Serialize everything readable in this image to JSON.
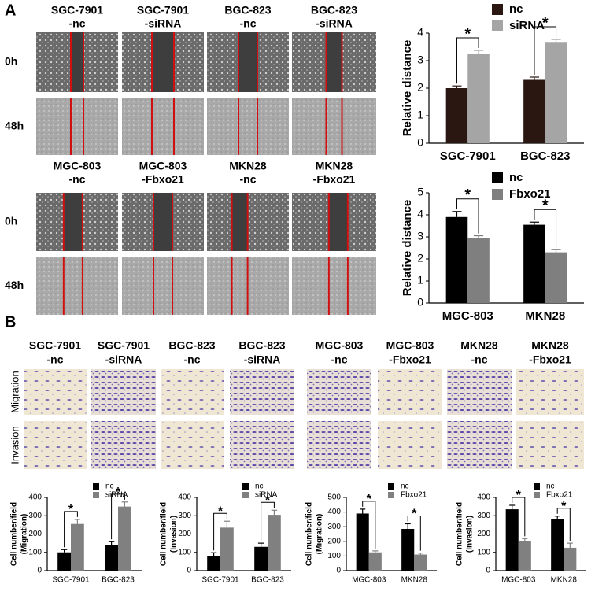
{
  "panel_a": {
    "label": "A",
    "header_rows": [
      [
        [
          "SGC-7901",
          "-nc"
        ],
        [
          "SGC-7901",
          "-siRNA"
        ],
        [
          "BGC-823",
          "-nc"
        ],
        [
          "BGC-823",
          "-siRNA"
        ]
      ],
      [
        [
          "MGC-803",
          "-nc"
        ],
        [
          "MGC-803",
          "-Fbxo21"
        ],
        [
          "MKN28",
          "-nc"
        ],
        [
          "MKN28",
          "-Fbxo21"
        ]
      ]
    ],
    "time_labels": [
      "0h",
      "48h"
    ]
  },
  "panel_b": {
    "label": "B",
    "headers": [
      [
        "SGC-7901",
        "-nc"
      ],
      [
        "SGC-7901",
        "-siRNA"
      ],
      [
        "BGC-823",
        "-nc"
      ],
      [
        "BGC-823",
        "-siRNA"
      ],
      [
        "MGC-803",
        "-nc"
      ],
      [
        "MGC-803",
        "-Fbxo21"
      ],
      [
        "MKN28",
        "-nc"
      ],
      [
        "MKN28",
        "-Fbxo21"
      ]
    ],
    "row_labels": [
      "Migration",
      "Invasion"
    ]
  },
  "chart_data": [
    {
      "type": "bar",
      "ylabel": [
        "Relative distance"
      ],
      "categories": [
        "SGC-7901",
        "BGC-823"
      ],
      "series": [
        {
          "name": "nc",
          "color": "#2a1712",
          "values": [
            2.0,
            2.3
          ],
          "errors": [
            0.08,
            0.1
          ]
        },
        {
          "name": "siRNA",
          "color": "#a5a5a5",
          "values": [
            3.25,
            3.65
          ],
          "errors": [
            0.12,
            0.12
          ]
        }
      ],
      "ylim": [
        0,
        4
      ],
      "yticks": [
        0,
        1,
        2,
        3,
        4
      ],
      "annotations": [
        "*",
        "*"
      ]
    },
    {
      "type": "bar",
      "ylabel": [
        "Relative distance"
      ],
      "categories": [
        "MGC-803",
        "MKN28"
      ],
      "series": [
        {
          "name": "nc",
          "color": "#000000",
          "values": [
            3.9,
            3.55
          ],
          "errors": [
            0.25,
            0.12
          ]
        },
        {
          "name": "Fbxo21",
          "color": "#7f7f7f",
          "values": [
            2.95,
            2.3
          ],
          "errors": [
            0.1,
            0.12
          ]
        }
      ],
      "ylim": [
        0,
        5
      ],
      "yticks": [
        0,
        1,
        2,
        3,
        4,
        5
      ],
      "annotations": [
        "*",
        "*"
      ]
    },
    {
      "type": "bar",
      "ylabel": [
        "Cell number/field",
        "(Migration)"
      ],
      "categories": [
        "SGC-7901",
        "BGC-823"
      ],
      "series": [
        {
          "name": "nc",
          "color": "#000000",
          "values": [
            100,
            140
          ],
          "errors": [
            15,
            18
          ]
        },
        {
          "name": "siRNA",
          "color": "#808080",
          "values": [
            255,
            350
          ],
          "errors": [
            25,
            25
          ]
        }
      ],
      "ylim": [
        0,
        400
      ],
      "yticks": [
        0,
        100,
        200,
        300,
        400
      ],
      "annotations": [
        "*",
        "*"
      ]
    },
    {
      "type": "bar",
      "ylabel": [
        "Cell number/field",
        "(Invasion)"
      ],
      "categories": [
        "SGC-7901",
        "BGC-823"
      ],
      "series": [
        {
          "name": "nc",
          "color": "#000000",
          "values": [
            80,
            130
          ],
          "errors": [
            18,
            20
          ]
        },
        {
          "name": "siRNA",
          "color": "#808080",
          "values": [
            235,
            305
          ],
          "errors": [
            35,
            25
          ]
        }
      ],
      "ylim": [
        0,
        400
      ],
      "yticks": [
        0,
        100,
        200,
        300,
        400
      ],
      "annotations": [
        "*",
        "*"
      ]
    },
    {
      "type": "bar",
      "ylabel": [
        "Cell number/field",
        "(Migration)"
      ],
      "categories": [
        "MGC-803",
        "MKN28"
      ],
      "series": [
        {
          "name": "nc",
          "color": "#000000",
          "values": [
            390,
            285
          ],
          "errors": [
            30,
            35
          ]
        },
        {
          "name": "Fbxo21",
          "color": "#808080",
          "values": [
            125,
            110
          ],
          "errors": [
            10,
            10
          ]
        }
      ],
      "ylim": [
        0,
        500
      ],
      "yticks": [
        0,
        100,
        200,
        300,
        400,
        500
      ],
      "annotations": [
        "*",
        "*"
      ]
    },
    {
      "type": "bar",
      "ylabel": [
        "Cell number/field",
        "(Invasion)"
      ],
      "categories": [
        "MGC-803",
        "MKN28"
      ],
      "series": [
        {
          "name": "nc",
          "color": "#000000",
          "values": [
            335,
            280
          ],
          "errors": [
            22,
            18
          ]
        },
        {
          "name": "Fbxo21",
          "color": "#808080",
          "values": [
            160,
            125
          ],
          "errors": [
            15,
            25
          ]
        }
      ],
      "ylim": [
        0,
        400
      ],
      "yticks": [
        0,
        100,
        200,
        300,
        400
      ],
      "annotations": [
        "*",
        "*"
      ]
    }
  ]
}
